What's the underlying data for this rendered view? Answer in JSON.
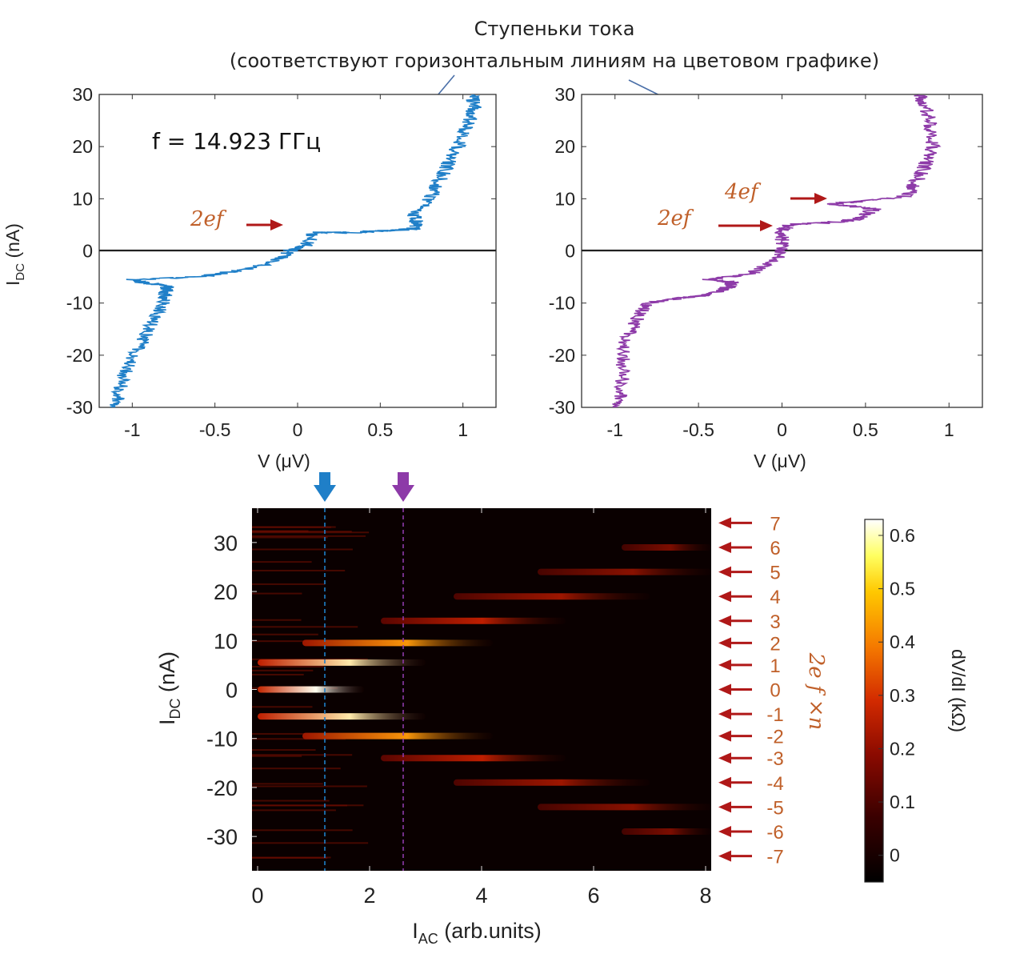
{
  "annotation": {
    "line1": "Ступеньки тока",
    "line2": "(соответствуют горизонтальным линиям на цветовом графике)"
  },
  "colors": {
    "blue_trace": "#1f7fc8",
    "purple_trace": "#8d3aa8",
    "arrow_red": "#b01818",
    "label_orange": "#c0602a",
    "blue_marker": "#1f7fc8",
    "purple_marker": "#8d3aa8"
  },
  "chart_data": [
    {
      "id": "left-iv",
      "type": "line",
      "title": "",
      "annotation_text": "f = 14.923 ГГц",
      "xlabel": "V (μV)",
      "ylabel": "I_DC (nA)",
      "xlim": [
        -1.2,
        1.2
      ],
      "ylim": [
        -30,
        30
      ],
      "xticks": [
        "-1",
        "-0.5",
        "0",
        "0.5",
        "1"
      ],
      "yticks": [
        "-30",
        "-20",
        "-10",
        "0",
        "10",
        "20",
        "30"
      ],
      "step_labels": [
        {
          "text": "2ef",
          "current": 4.5
        }
      ],
      "series": [
        {
          "color": "#1f7fc8",
          "x": [
            -1.1,
            -1.08,
            -1.05,
            -1.0,
            -0.95,
            -0.9,
            -0.85,
            -0.8,
            -0.8,
            -0.78,
            -0.8,
            -0.95,
            -1.0,
            -0.6,
            -0.3,
            -0.1,
            -0.05,
            0.05,
            0.1,
            0.3,
            0.5,
            0.7,
            0.72,
            0.7,
            0.8,
            0.85,
            0.9,
            0.95,
            1.0,
            1.02,
            1.05,
            1.07,
            1.05
          ],
          "y": [
            -30,
            -27,
            -24,
            -21,
            -18,
            -15,
            -12,
            -9.5,
            -8,
            -7.5,
            -6.5,
            -6,
            -5.5,
            -5,
            -3.5,
            -1.5,
            0,
            1,
            3.5,
            3.5,
            3.8,
            4.2,
            5.5,
            7,
            10,
            13,
            16,
            19,
            22,
            24,
            26,
            28,
            30
          ]
        }
      ]
    },
    {
      "id": "right-iv",
      "type": "line",
      "title": "",
      "xlabel": "V (μV)",
      "ylabel": "",
      "xlim": [
        -1.2,
        1.2
      ],
      "ylim": [
        -30,
        30
      ],
      "xticks": [
        "-1",
        "-0.5",
        "0",
        "0.5",
        "1"
      ],
      "yticks": [
        "-30",
        "-20",
        "-10",
        "0",
        "10",
        "20",
        "30"
      ],
      "step_labels": [
        {
          "text": "4ef",
          "current": 10
        },
        {
          "text": "2ef",
          "current": 5
        }
      ],
      "series": [
        {
          "color": "#8d3aa8",
          "x": [
            -0.98,
            -0.96,
            -0.95,
            -0.94,
            -0.9,
            -0.85,
            -0.8,
            -0.6,
            -0.45,
            -0.35,
            -0.3,
            -0.3,
            -0.45,
            -0.2,
            -0.05,
            0.0,
            0.0,
            0.0,
            0.05,
            0.3,
            0.45,
            0.55,
            0.3,
            0.45,
            0.75,
            0.8,
            0.85,
            0.9,
            0.9,
            0.88,
            0.85,
            0.82
          ],
          "y": [
            -30,
            -26,
            -22,
            -18,
            -15,
            -12,
            -10,
            -9,
            -8.5,
            -7.5,
            -6.5,
            -6,
            -5.5,
            -4.5,
            -2,
            0,
            2,
            4,
            5,
            5.5,
            6,
            8,
            9,
            9.5,
            10.5,
            13,
            16,
            19,
            22,
            25,
            28,
            30
          ]
        }
      ]
    },
    {
      "id": "color-map",
      "type": "heatmap",
      "title": "",
      "xlabel": "I_AC (arb.units)",
      "ylabel": "I_DC (nA)",
      "xlim": [
        -0.1,
        8.1
      ],
      "ylim": [
        -37,
        37
      ],
      "xticks": [
        "0",
        "2",
        "4",
        "6",
        "8"
      ],
      "yticks": [
        "30",
        "20",
        "10",
        "0",
        "-10",
        "-20",
        "-30"
      ],
      "colorbar": {
        "label": "dV/dI (kΩ)",
        "range": [
          -0.05,
          0.63
        ],
        "ticks": [
          "0.6",
          "0.5",
          "0.4",
          "0.3",
          "0.2",
          "0.1",
          "0"
        ]
      },
      "markers": [
        {
          "x": 1.2,
          "color": "#1f7fc8"
        },
        {
          "x": 2.6,
          "color": "#8d3aa8"
        }
      ],
      "side_axis_label": "2e f ×n",
      "steps": [
        {
          "n": "7",
          "current": 34
        },
        {
          "n": "6",
          "current": 29
        },
        {
          "n": "5",
          "current": 24
        },
        {
          "n": "4",
          "current": 19
        },
        {
          "n": "3",
          "current": 14
        },
        {
          "n": "2",
          "current": 9.5
        },
        {
          "n": "1",
          "current": 5
        },
        {
          "n": "0",
          "current": 0
        },
        {
          "n": "-1",
          "current": -5
        },
        {
          "n": "-2",
          "current": -9.5
        },
        {
          "n": "-3",
          "current": -14
        },
        {
          "n": "-4",
          "current": -19
        },
        {
          "n": "-5",
          "current": -24
        },
        {
          "n": "-6",
          "current": -29
        },
        {
          "n": "-7",
          "current": -34
        }
      ],
      "bright_bands": [
        {
          "current": 0,
          "x_start": 0,
          "x_end": 1.9,
          "peak": 0.63
        },
        {
          "current": 5.5,
          "x_start": 0,
          "x_end": 3.0,
          "peak": 0.6
        },
        {
          "current": -5.5,
          "x_start": 0,
          "x_end": 3.0,
          "peak": 0.6
        },
        {
          "current": 9.5,
          "x_start": 0.8,
          "x_end": 4.2,
          "peak": 0.5
        },
        {
          "current": -9.5,
          "x_start": 0.8,
          "x_end": 4.2,
          "peak": 0.5
        },
        {
          "current": 14,
          "x_start": 2.2,
          "x_end": 5.5,
          "peak": 0.3
        },
        {
          "current": -14,
          "x_start": 2.2,
          "x_end": 5.5,
          "peak": 0.3
        },
        {
          "current": 19,
          "x_start": 3.5,
          "x_end": 7.0,
          "peak": 0.25
        },
        {
          "current": -19,
          "x_start": 3.5,
          "x_end": 7.0,
          "peak": 0.25
        },
        {
          "current": 24,
          "x_start": 5.0,
          "x_end": 8.1,
          "peak": 0.22
        },
        {
          "current": -24,
          "x_start": 5.0,
          "x_end": 8.1,
          "peak": 0.22
        },
        {
          "current": 29,
          "x_start": 6.5,
          "x_end": 8.1,
          "peak": 0.2
        },
        {
          "current": -29,
          "x_start": 6.5,
          "x_end": 8.1,
          "peak": 0.2
        }
      ]
    }
  ]
}
